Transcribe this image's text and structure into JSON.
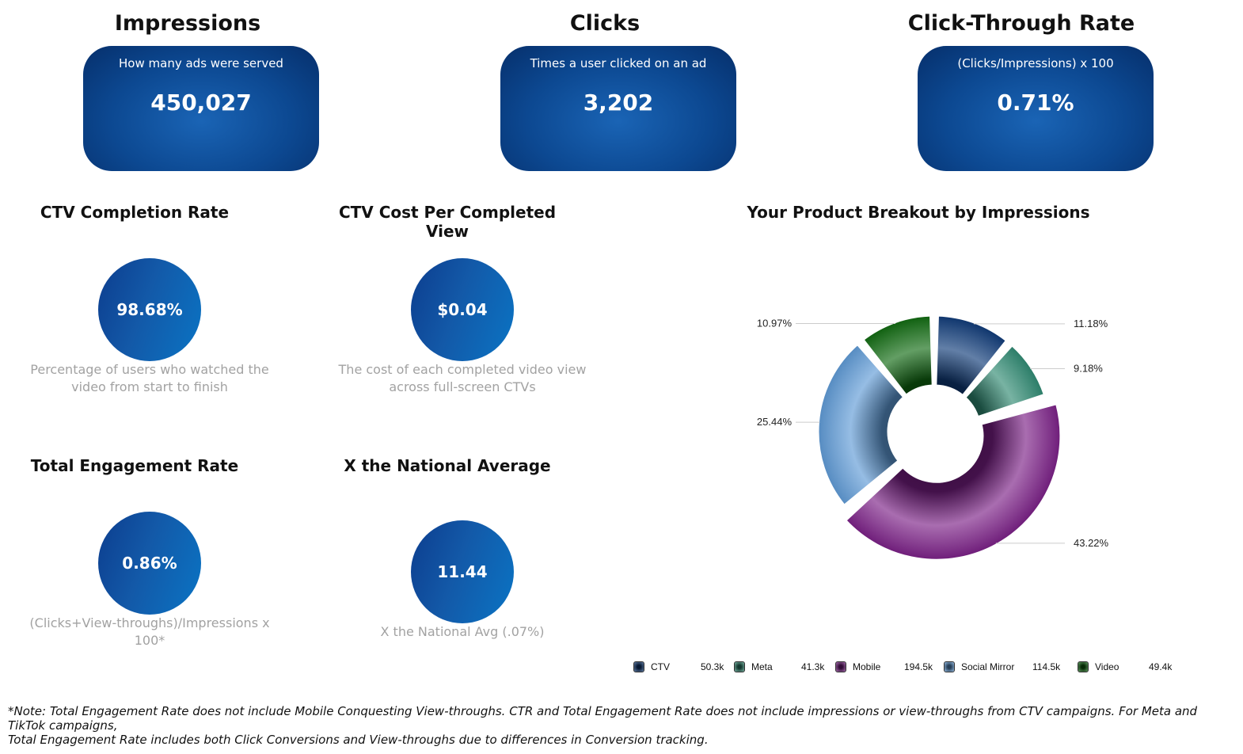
{
  "kpis": [
    {
      "title": "Impressions",
      "description": "How many ads were served",
      "value": "450,027"
    },
    {
      "title": "Clicks",
      "description": "Times a user clicked on an ad",
      "value": "3,202"
    },
    {
      "title": "Click-Through Rate",
      "description": "(Clicks/Impressions) x 100",
      "value": "0.71%"
    }
  ],
  "metrics": [
    {
      "title": "CTV Completion Rate",
      "value": "98.68%",
      "description_line1": "Percentage of users who watched the",
      "description_line2": "video from start to finish"
    },
    {
      "title": "CTV Cost Per Completed View",
      "value": "$0.04",
      "description_line1": "The cost of each completed video view",
      "description_line2": "across full-screen CTVs"
    },
    {
      "title": "Total Engagement Rate",
      "value": "0.86%",
      "description_line1": "(Clicks+View-throughs)/Impressions x",
      "description_line2": "100*"
    },
    {
      "title": "X the National Average",
      "value": "11.44",
      "description_line1": "X the National Avg (.07%)",
      "description_line2": ""
    }
  ],
  "chart_data": {
    "type": "pie",
    "title": "Your Product Breakout by Impressions",
    "donut": true,
    "legend_position": "bottom",
    "slices": [
      {
        "name": "CTV",
        "value": 50.3,
        "value_label": "50.3k",
        "percent_label": "11.18%",
        "color": "#0e3a78"
      },
      {
        "name": "Meta",
        "value": 41.3,
        "value_label": "41.3k",
        "percent_label": "9.18%",
        "color": "#2f8a72"
      },
      {
        "name": "Mobile",
        "value": 194.5,
        "value_label": "194.5k",
        "percent_label": "43.22%",
        "color": "#7a1f86"
      },
      {
        "name": "Social Mirror",
        "value": 114.5,
        "value_label": "114.5k",
        "percent_label": "25.44%",
        "color": "#5e9ad6"
      },
      {
        "name": "Video",
        "value": 49.4,
        "value_label": "49.4k",
        "percent_label": "10.97%",
        "color": "#0f6a10"
      }
    ]
  },
  "footnote": {
    "line1": "*Note: Total Engagement Rate does not include Mobile Conquesting View-throughs. CTR and Total Engagement Rate does not include impressions or view-throughs from CTV campaigns. For Meta and TikTok campaigns,",
    "line2": "Total Engagement Rate includes both Click Conversions and View-throughs due to differences in Conversion tracking."
  }
}
